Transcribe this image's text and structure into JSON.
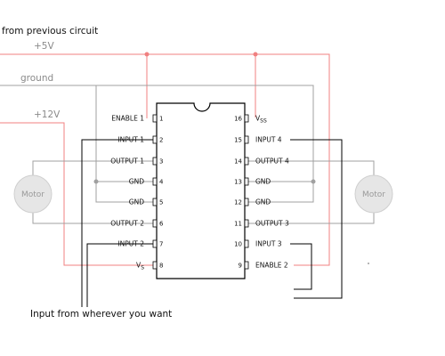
{
  "labels": {
    "from_previous": "from previous circuit",
    "plus5v": "+5V",
    "ground": "ground",
    "plus12v": "+12V",
    "input_from": "Input from wherever you want",
    "motor": "Motor"
  },
  "chip": {
    "left_pins": [
      {
        "num": "1",
        "name": "ENABLE 1"
      },
      {
        "num": "2",
        "name": "INPUT 1"
      },
      {
        "num": "3",
        "name": "OUTPUT 1"
      },
      {
        "num": "4",
        "name": "GND"
      },
      {
        "num": "5",
        "name": "GND"
      },
      {
        "num": "6",
        "name": "OUTPUT 2"
      },
      {
        "num": "7",
        "name": "INPUT 2"
      },
      {
        "num": "8",
        "name": "V",
        "sub": "S"
      }
    ],
    "right_pins": [
      {
        "num": "16",
        "name": "V",
        "sub": "SS"
      },
      {
        "num": "15",
        "name": "INPUT 4"
      },
      {
        "num": "14",
        "name": "OUTPUT 4"
      },
      {
        "num": "13",
        "name": "GND"
      },
      {
        "num": "12",
        "name": "GND"
      },
      {
        "num": "11",
        "name": "OUTPUT 3"
      },
      {
        "num": "10",
        "name": "INPUT 3"
      },
      {
        "num": "9",
        "name": "ENABLE 2"
      }
    ]
  },
  "colors": {
    "red_wire": "#f08080",
    "gray_wire": "#a0a0a0",
    "black_wire": "#000000",
    "motor_fill": "#e6e6e6"
  }
}
